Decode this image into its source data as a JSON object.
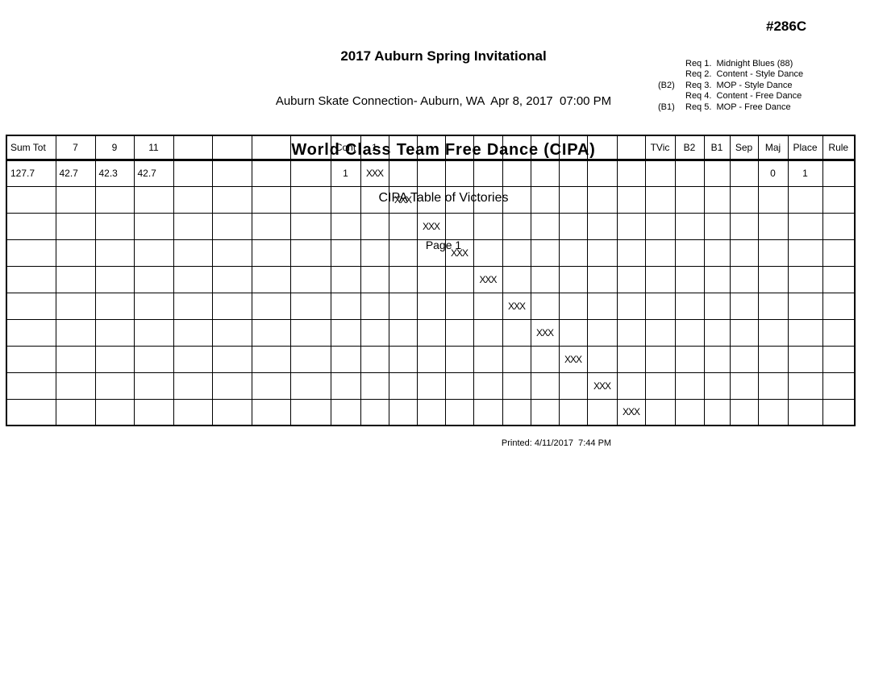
{
  "page": {
    "title": "2017 Auburn Spring Invitational",
    "venue_datetime": "Auburn Skate Connection- Auburn, WA  Apr 8, 2017  07:00 PM",
    "event_title": "World Class Team Free Dance (CIPA)",
    "report_title": "CIPA Table of Victories",
    "page_label": "Page 1",
    "event_code": "#286C"
  },
  "requirements": [
    {
      "prefix": "",
      "label": "Req 1.  Midnight Blues (88)"
    },
    {
      "prefix": "",
      "label": "Req 2.  Content - Style Dance"
    },
    {
      "prefix": "(B2)",
      "label": "Req 3.  MOP - Style Dance"
    },
    {
      "prefix": "",
      "label": "Req 4.  Content - Free Dance"
    },
    {
      "prefix": "(B1)",
      "label": "Req 5.  MOP - Free Dance"
    }
  ],
  "table": {
    "columns": [
      "Sum Tot",
      "7",
      "9",
      "11",
      "",
      "",
      "",
      "",
      "Cont",
      "1",
      "",
      "",
      "",
      "",
      "",
      "",
      "",
      "",
      "",
      "TVic",
      "B2",
      "B1",
      "Sep",
      "Maj",
      "Place",
      "Rule"
    ],
    "rows": [
      [
        "127.7",
        "42.7",
        "42.3",
        "42.7",
        "",
        "",
        "",
        "",
        "1",
        "XXX",
        "",
        "",
        "",
        "",
        "",
        "",
        "",
        "",
        "",
        "",
        "",
        "",
        "",
        "0",
        {
          "text": "1",
          "bold": true
        },
        ""
      ],
      [
        "",
        "",
        "",
        "",
        "",
        "",
        "",
        "",
        "",
        "",
        "XXX",
        "",
        "",
        "",
        "",
        "",
        "",
        "",
        "",
        "",
        "",
        "",
        "",
        "",
        "",
        ""
      ],
      [
        "",
        "",
        "",
        "",
        "",
        "",
        "",
        "",
        "",
        "",
        "",
        "XXX",
        "",
        "",
        "",
        "",
        "",
        "",
        "",
        "",
        "",
        "",
        "",
        "",
        "",
        ""
      ],
      [
        "",
        "",
        "",
        "",
        "",
        "",
        "",
        "",
        "",
        "",
        "",
        "",
        "XXX",
        "",
        "",
        "",
        "",
        "",
        "",
        "",
        "",
        "",
        "",
        "",
        "",
        ""
      ],
      [
        "",
        "",
        "",
        "",
        "",
        "",
        "",
        "",
        "",
        "",
        "",
        "",
        "",
        "XXX",
        "",
        "",
        "",
        "",
        "",
        "",
        "",
        "",
        "",
        "",
        "",
        ""
      ],
      [
        "",
        "",
        "",
        "",
        "",
        "",
        "",
        "",
        "",
        "",
        "",
        "",
        "",
        "",
        "XXX",
        "",
        "",
        "",
        "",
        "",
        "",
        "",
        "",
        "",
        "",
        ""
      ],
      [
        "",
        "",
        "",
        "",
        "",
        "",
        "",
        "",
        "",
        "",
        "",
        "",
        "",
        "",
        "",
        "XXX",
        "",
        "",
        "",
        "",
        "",
        "",
        "",
        "",
        "",
        ""
      ],
      [
        "",
        "",
        "",
        "",
        "",
        "",
        "",
        "",
        "",
        "",
        "",
        "",
        "",
        "",
        "",
        "",
        "XXX",
        "",
        "",
        "",
        "",
        "",
        "",
        "",
        "",
        ""
      ],
      [
        "",
        "",
        "",
        "",
        "",
        "",
        "",
        "",
        "",
        "",
        "",
        "",
        "",
        "",
        "",
        "",
        "",
        "XXX",
        "",
        "",
        "",
        "",
        "",
        "",
        "",
        ""
      ],
      [
        "",
        "",
        "",
        "",
        "",
        "",
        "",
        "",
        "",
        "",
        "",
        "",
        "",
        "",
        "",
        "",
        "",
        "",
        "XXX",
        "",
        "",
        "",
        "",
        "",
        "",
        ""
      ]
    ]
  },
  "footer": {
    "printed": "Printed: 4/11/2017  7:44 PM"
  }
}
